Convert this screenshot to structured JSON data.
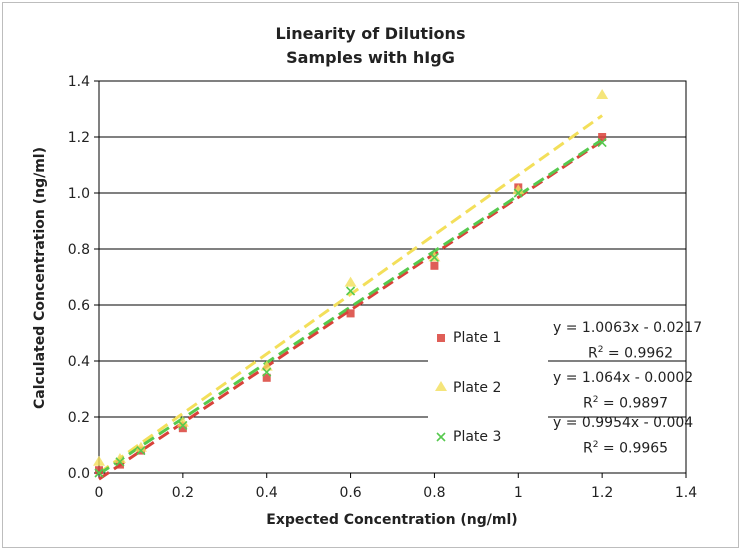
{
  "chart_data": {
    "type": "scatter",
    "title": "Linearity of Dilutions",
    "subtitle": "Samples with hIgG",
    "xlabel": "Expected Concentration (ng/ml)",
    "ylabel": "Calculated Concentration (ng/ml)",
    "xlim": [
      0,
      1.4
    ],
    "ylim": [
      0,
      1.4
    ],
    "x_ticks": [
      "0",
      "0.2",
      "0.4",
      "0.6",
      "0.8",
      "1",
      "1.2",
      "1.4"
    ],
    "y_ticks": [
      "0.0",
      "0.2",
      "0.4",
      "0.6",
      "0.8",
      "1.0",
      "1.2",
      "1.4"
    ],
    "grid": "horizontal",
    "legend_position": "right",
    "series": [
      {
        "name": "Plate 1",
        "color": "#d9423a",
        "marker": "square",
        "points": [
          [
            0,
            0.01
          ],
          [
            0.05,
            0.03
          ],
          [
            0.1,
            0.08
          ],
          [
            0.2,
            0.16
          ],
          [
            0.4,
            0.34
          ],
          [
            0.6,
            0.57
          ],
          [
            0.8,
            0.74
          ],
          [
            1.0,
            1.02
          ],
          [
            1.2,
            1.2
          ]
        ],
        "trendline": {
          "slope": 1.0063,
          "intercept": -0.0217,
          "equation": "y = 1.0063x - 0.0217",
          "r2_label": "R",
          "r2_value": " = 0.9962",
          "r2_exp": "2"
        }
      },
      {
        "name": "Plate 2",
        "color": "#f3df5a",
        "marker": "triangle",
        "points": [
          [
            0,
            0.04
          ],
          [
            0.05,
            0.05
          ],
          [
            0.1,
            0.09
          ],
          [
            0.2,
            0.18
          ],
          [
            0.4,
            0.38
          ],
          [
            0.6,
            0.68
          ],
          [
            0.8,
            0.77
          ],
          [
            1.0,
            1.01
          ],
          [
            1.2,
            1.35
          ]
        ],
        "trendline": {
          "slope": 1.064,
          "intercept": -0.0002,
          "equation": "y = 1.064x - 0.0002",
          "r2_label": "R",
          "r2_value": " = 0.9897",
          "r2_exp": "2"
        }
      },
      {
        "name": "Plate 3",
        "color": "#56c94e",
        "marker": "x",
        "points": [
          [
            0,
            0.0
          ],
          [
            0.05,
            0.04
          ],
          [
            0.1,
            0.08
          ],
          [
            0.2,
            0.17
          ],
          [
            0.4,
            0.36
          ],
          [
            0.6,
            0.65
          ],
          [
            0.8,
            0.77
          ],
          [
            1.0,
            1.0
          ],
          [
            1.2,
            1.18
          ]
        ],
        "trendline": {
          "slope": 0.9954,
          "intercept": -0.004,
          "equation": "y = 0.9954x - 0.004",
          "r2_label": "R",
          "r2_value": " = 0.9965",
          "r2_exp": "2"
        }
      }
    ]
  }
}
